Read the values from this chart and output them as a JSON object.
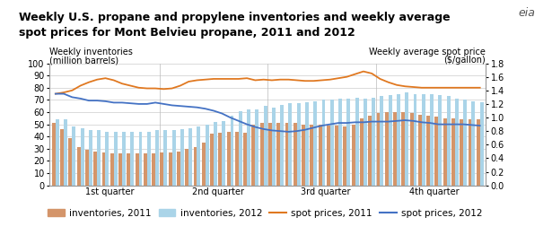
{
  "title": "Weekly U.S. propane and propylene inventories and weekly average\nspot prices for Mont Belvieu propane, 2011 and 2012",
  "ylabel_left_line1": "Weekly inventories",
  "ylabel_left_line2": "(million barrels)",
  "ylabel_right_line1": "Weekly average spot price",
  "ylabel_right_line2": "($/gallon)",
  "xtick_labels": [
    "1st quarter",
    "2nd quarter",
    "3rd quarter",
    "4th quarter"
  ],
  "ylim_left": [
    0,
    100
  ],
  "ylim_right": [
    0.0,
    1.8
  ],
  "yticks_left": [
    0,
    10,
    20,
    30,
    40,
    50,
    60,
    70,
    80,
    90,
    100
  ],
  "yticks_right": [
    0.0,
    0.2,
    0.4,
    0.6,
    0.8,
    1.0,
    1.2,
    1.4,
    1.6,
    1.8
  ],
  "bar_color_2011": "#D4956A",
  "bar_color_2012": "#AAD4E8",
  "line_color_2011": "#E07820",
  "line_color_2012": "#4472C4",
  "background_color": "#FFFFFF",
  "grid_color": "#CCCCCC",
  "title_fontsize": 9.0,
  "axis_label_fontsize": 7.0,
  "tick_fontsize": 7.0,
  "legend_fontsize": 7.5,
  "inventories_2011": [
    51,
    46,
    39,
    31,
    29,
    28,
    27,
    26,
    26,
    26,
    26,
    26,
    26,
    27,
    27,
    28,
    30,
    31,
    35,
    42,
    43,
    44,
    44,
    43,
    50,
    51,
    51,
    51,
    51,
    51,
    50,
    50,
    50,
    49,
    49,
    48,
    50,
    55,
    57,
    59,
    60,
    60,
    60,
    59,
    58,
    57,
    56,
    55,
    55,
    54,
    54,
    54
  ],
  "inventories_2012": [
    54,
    54,
    48,
    47,
    45,
    45,
    44,
    44,
    44,
    44,
    44,
    44,
    45,
    45,
    45,
    46,
    47,
    48,
    50,
    52,
    53,
    57,
    61,
    62,
    62,
    65,
    64,
    66,
    67,
    67,
    68,
    69,
    70,
    70,
    71,
    71,
    72,
    71,
    72,
    73,
    74,
    75,
    76,
    75,
    75,
    75,
    74,
    73,
    71,
    70,
    69,
    68
  ],
  "spot_prices_2011": [
    1.35,
    1.37,
    1.4,
    1.47,
    1.52,
    1.56,
    1.58,
    1.55,
    1.5,
    1.47,
    1.44,
    1.43,
    1.43,
    1.42,
    1.43,
    1.47,
    1.53,
    1.55,
    1.56,
    1.57,
    1.57,
    1.57,
    1.57,
    1.58,
    1.55,
    1.56,
    1.55,
    1.56,
    1.56,
    1.55,
    1.54,
    1.54,
    1.55,
    1.56,
    1.58,
    1.6,
    1.64,
    1.68,
    1.65,
    1.57,
    1.52,
    1.48,
    1.46,
    1.45,
    1.44,
    1.44,
    1.44,
    1.44,
    1.44,
    1.44,
    1.44,
    1.44
  ],
  "spot_prices_2012": [
    1.35,
    1.35,
    1.3,
    1.28,
    1.25,
    1.25,
    1.24,
    1.22,
    1.22,
    1.21,
    1.2,
    1.2,
    1.22,
    1.2,
    1.18,
    1.17,
    1.16,
    1.15,
    1.13,
    1.1,
    1.06,
    1.0,
    0.95,
    0.9,
    0.86,
    0.83,
    0.81,
    0.8,
    0.79,
    0.8,
    0.82,
    0.85,
    0.88,
    0.9,
    0.92,
    0.92,
    0.93,
    0.93,
    0.94,
    0.94,
    0.94,
    0.95,
    0.96,
    0.95,
    0.93,
    0.92,
    0.9,
    0.9,
    0.9,
    0.9,
    0.89,
    0.88
  ],
  "n_weeks": 52,
  "eia_logo_text": "eia"
}
